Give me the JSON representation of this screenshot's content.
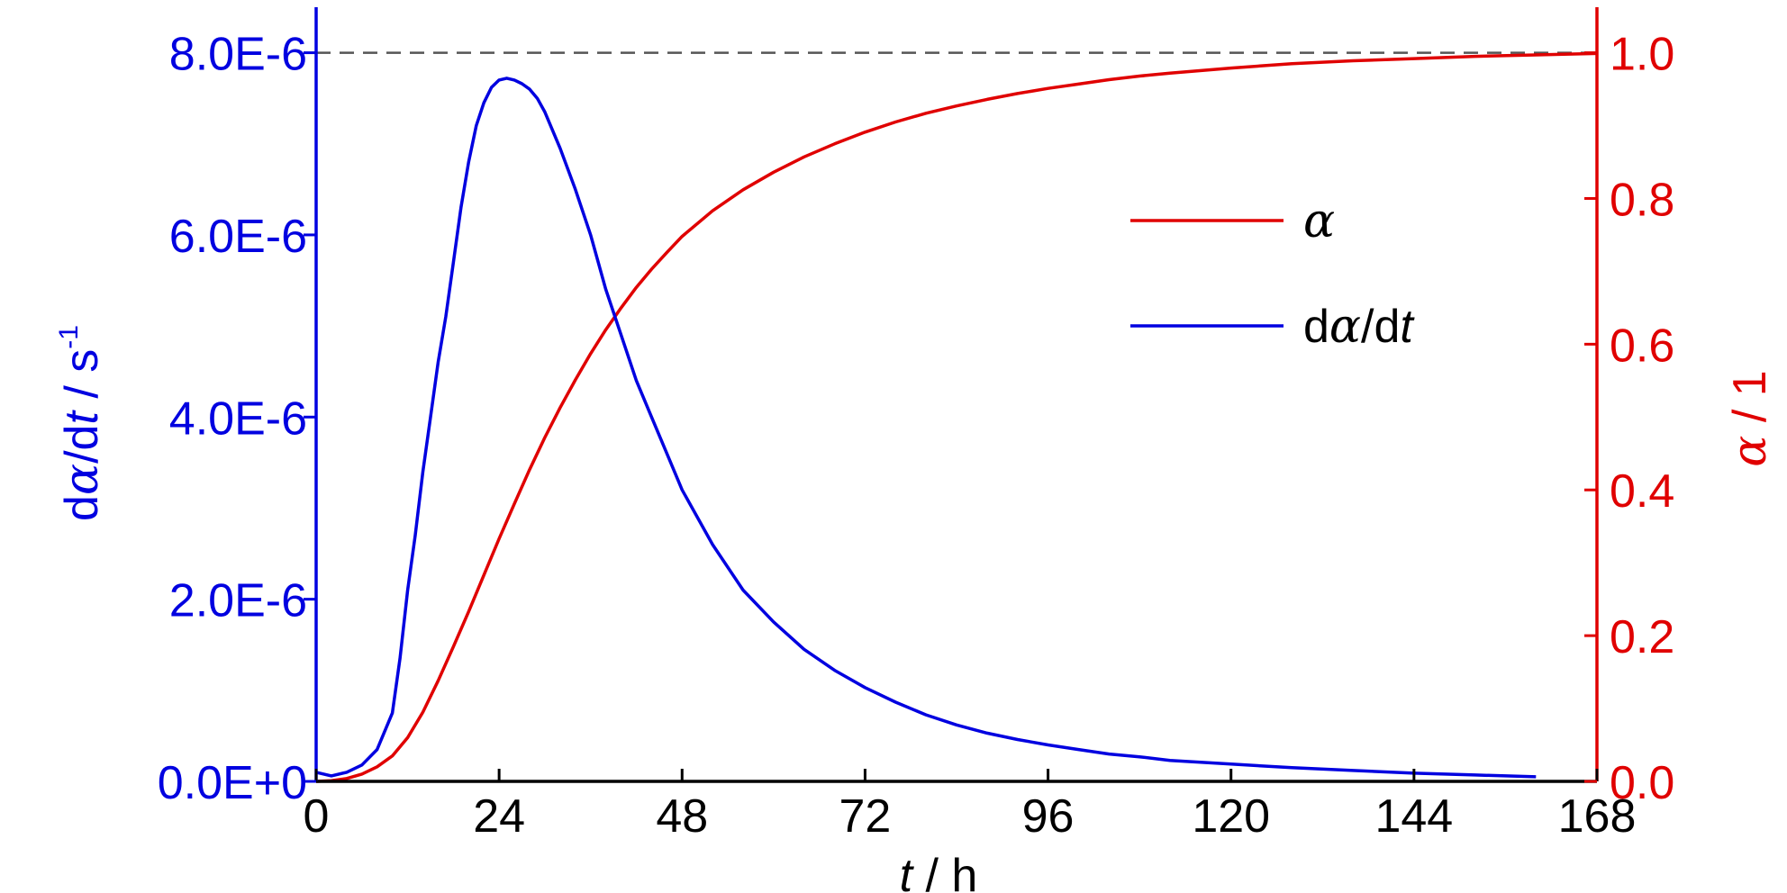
{
  "colors": {
    "alpha": "#e00000",
    "rate": "#0000e0",
    "axis": "#000000",
    "reference": "#555555"
  },
  "chart_data": {
    "type": "line",
    "title": "",
    "x_axis": {
      "label_italic": "t",
      "label_rest": " / h",
      "range": [
        0,
        168
      ],
      "ticks": [
        0,
        24,
        48,
        72,
        96,
        120,
        144,
        168
      ]
    },
    "y_left": {
      "label_parts": [
        "d",
        "α",
        "/d",
        "t",
        " / s",
        "-1"
      ],
      "range": [
        0,
        8.5e-06
      ],
      "ticks": [
        0,
        2e-06,
        4e-06,
        6e-06,
        8e-06
      ],
      "tick_labels": [
        "0.0E+0",
        "2.0E-6",
        "4.0E-6",
        "6.0E-6",
        "8.0E-6"
      ]
    },
    "y_right": {
      "label_parts": [
        "α",
        " / 1"
      ],
      "range": [
        0,
        1.0625
      ],
      "ticks": [
        0,
        0.2,
        0.4,
        0.6,
        0.8,
        1.0
      ],
      "tick_labels": [
        "0.0",
        "0.2",
        "0.4",
        "0.6",
        "0.8",
        "1.0"
      ]
    },
    "reference_line": {
      "axis": "right",
      "value": 1.0
    },
    "legend": {
      "position": "center-right",
      "entries": [
        {
          "series": "alpha",
          "parts": [
            "α"
          ]
        },
        {
          "series": "rate",
          "parts": [
            "d",
            "α",
            "/d",
            "t"
          ]
        }
      ]
    },
    "series": [
      {
        "id": "alpha",
        "axis": "right",
        "x": [
          0,
          2,
          4,
          6,
          8,
          10,
          12,
          14,
          16,
          18,
          20,
          22,
          24,
          26,
          28,
          30,
          32,
          34,
          36,
          38,
          40,
          42,
          44,
          46,
          48,
          52,
          56,
          60,
          64,
          68,
          72,
          76,
          80,
          84,
          88,
          92,
          96,
          100,
          104,
          108,
          112,
          120,
          128,
          136,
          144,
          152,
          160,
          168
        ],
        "y": [
          0,
          0.001,
          0.004,
          0.01,
          0.02,
          0.035,
          0.06,
          0.095,
          0.138,
          0.185,
          0.233,
          0.283,
          0.333,
          0.381,
          0.428,
          0.472,
          0.513,
          0.551,
          0.587,
          0.62,
          0.65,
          0.678,
          0.703,
          0.726,
          0.748,
          0.783,
          0.812,
          0.836,
          0.857,
          0.875,
          0.891,
          0.905,
          0.917,
          0.927,
          0.936,
          0.944,
          0.951,
          0.957,
          0.963,
          0.968,
          0.972,
          0.979,
          0.985,
          0.989,
          0.992,
          0.995,
          0.997,
          0.999
        ]
      },
      {
        "id": "rate",
        "axis": "left",
        "x": [
          0,
          2,
          4,
          6,
          8,
          10,
          11,
          12,
          13,
          14,
          15,
          16,
          17,
          18,
          19,
          20,
          21,
          22,
          23,
          24,
          25,
          26,
          27,
          28,
          29,
          30,
          32,
          34,
          36,
          38,
          40,
          42,
          44,
          46,
          48,
          52,
          56,
          60,
          64,
          68,
          72,
          76,
          80,
          84,
          88,
          92,
          96,
          100,
          104,
          108,
          112,
          116,
          120,
          128,
          136,
          144,
          152,
          160
        ],
        "y": [
          1e-07,
          6e-08,
          1e-07,
          1.8e-07,
          3.5e-07,
          7.5e-07,
          1.35e-06,
          2.1e-06,
          2.7e-06,
          3.4e-06,
          4e-06,
          4.6e-06,
          5.1e-06,
          5.7e-06,
          6.3e-06,
          6.8e-06,
          7.2e-06,
          7.45e-06,
          7.62e-06,
          7.7e-06,
          7.72e-06,
          7.7e-06,
          7.66e-06,
          7.6e-06,
          7.5e-06,
          7.35e-06,
          6.95e-06,
          6.5e-06,
          6e-06,
          5.4e-06,
          4.9e-06,
          4.4e-06,
          4e-06,
          3.6e-06,
          3.2e-06,
          2.6e-06,
          2.1e-06,
          1.75e-06,
          1.45e-06,
          1.22e-06,
          1.03e-06,
          8.7e-07,
          7.3e-07,
          6.2e-07,
          5.3e-07,
          4.6e-07,
          4e-07,
          3.5e-07,
          3e-07,
          2.7e-07,
          2.3e-07,
          2.1e-07,
          1.9e-07,
          1.5e-07,
          1.2e-07,
          9e-08,
          7e-08,
          5e-08
        ]
      }
    ]
  }
}
